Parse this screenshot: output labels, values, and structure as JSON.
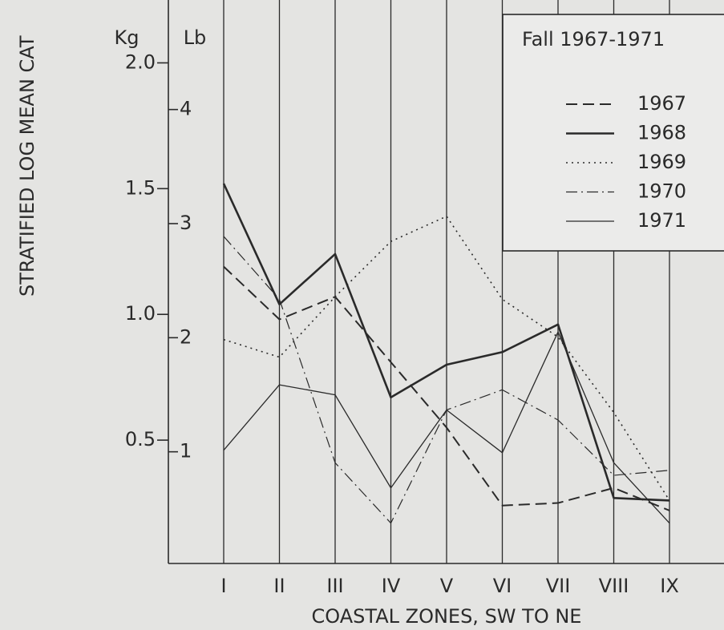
{
  "chart_data": {
    "type": "line",
    "ylabel": "STRATIFIED LOG MEAN CAT",
    "xlabel": "COASTAL ZONES, SW TO NE",
    "y_unit": "Kg",
    "y2_unit": "Lb",
    "legend_title": "Fall 1967-1971",
    "legend": "upper right",
    "categories": [
      "I",
      "II",
      "III",
      "IV",
      "V",
      "VI",
      "VII",
      "VIII",
      "IX"
    ],
    "ylim": [
      0,
      2.25
    ],
    "yticks": [
      {
        "value": 0.5,
        "label": "0.5"
      },
      {
        "value": 1,
        "label": "1.0"
      },
      {
        "value": 1.5,
        "label": "1.5"
      },
      {
        "value": 2,
        "label": "2.0"
      }
    ],
    "y2lim": [
      0,
      4.96
    ],
    "y2ticks": [
      1,
      2,
      3,
      4
    ],
    "series": [
      {
        "name": "1967",
        "color": "#2a2a2a",
        "dash": "dashed",
        "linewidth": 2,
        "values": [
          1.19,
          0.98,
          1.07,
          0.81,
          0.55,
          0.24,
          0.25,
          0.31,
          0.22
        ]
      },
      {
        "name": "1968",
        "color": "#2a2a2a",
        "dash": "solid",
        "linewidth": 2.6,
        "values": [
          1.52,
          1.04,
          1.24,
          0.67,
          0.8,
          0.85,
          0.96,
          0.27,
          0.26
        ]
      },
      {
        "name": "1969",
        "color": "#2a2a2a",
        "dash": "dotted",
        "linewidth": 1.6,
        "values": [
          0.9,
          0.83,
          1.07,
          1.29,
          1.39,
          1.06,
          0.91,
          0.61,
          0.26
        ]
      },
      {
        "name": "1970",
        "color": "#2a2a2a",
        "dash": "dashdot",
        "linewidth": 1.2,
        "values": [
          1.31,
          1.06,
          0.41,
          0.17,
          0.62,
          0.7,
          0.58,
          0.36,
          0.38
        ]
      },
      {
        "name": "1971",
        "color": "#2a2a2a",
        "dash": "solid",
        "linewidth": 1.3,
        "values": [
          0.46,
          0.72,
          0.68,
          0.31,
          0.62,
          0.45,
          0.93,
          0.41,
          0.17
        ]
      }
    ]
  }
}
